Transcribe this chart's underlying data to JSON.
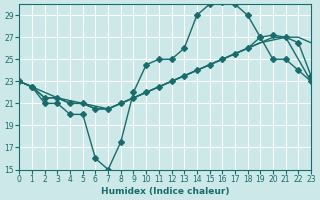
{
  "xlabel": "Humidex (Indice chaleur)",
  "ylabel": "",
  "xlim": [
    0,
    23
  ],
  "ylim": [
    15,
    30
  ],
  "xticks": [
    0,
    1,
    2,
    3,
    4,
    5,
    6,
    7,
    8,
    9,
    10,
    11,
    12,
    13,
    14,
    15,
    16,
    17,
    18,
    19,
    20,
    21,
    22,
    23
  ],
  "yticks": [
    15,
    17,
    19,
    21,
    23,
    25,
    27,
    29
  ],
  "bg_color": "#cce8e8",
  "line_color": "#1a6b6b",
  "grid_color": "#ffffff",
  "line1_x": [
    0,
    1,
    2,
    3,
    4,
    5,
    6,
    7,
    8,
    9,
    10,
    11,
    12,
    13,
    14,
    15,
    16,
    17,
    18,
    19,
    20,
    21,
    22,
    23
  ],
  "line1_y": [
    23,
    22.5,
    21,
    21,
    20,
    20,
    16,
    15,
    17.5,
    22,
    24.5,
    25,
    25,
    26,
    29,
    30,
    30.2,
    30,
    29,
    27,
    25,
    25,
    24,
    23
  ],
  "line2_x": [
    0,
    1,
    2,
    3,
    4,
    5,
    6,
    7,
    8,
    9,
    10,
    11,
    12,
    13,
    14,
    15,
    16,
    17,
    18,
    19,
    20,
    21,
    22,
    23
  ],
  "line2_y": [
    23,
    22.5,
    21.5,
    21.5,
    21,
    21,
    20.5,
    20.5,
    21,
    21.5,
    22,
    22.5,
    23,
    23.5,
    24,
    24.5,
    25,
    25.5,
    26,
    26.5,
    27,
    27,
    27,
    26.5
  ],
  "line3_x": [
    0,
    1,
    2,
    3,
    4,
    5,
    6,
    7,
    8,
    9,
    10,
    11,
    12,
    13,
    14,
    15,
    16,
    17,
    18,
    19,
    20,
    21,
    22,
    23
  ],
  "line3_y": [
    23,
    22.5,
    21.5,
    21.5,
    21,
    21,
    20.5,
    20.5,
    21,
    21.5,
    22,
    22.5,
    23,
    23.5,
    24,
    24.5,
    25,
    25.5,
    26,
    27,
    27.2,
    27,
    26.5,
    23.5
  ],
  "line4_x": [
    0,
    1,
    3,
    5,
    7,
    9,
    11,
    13,
    15,
    17,
    19,
    21,
    23
  ],
  "line4_y": [
    23,
    22.5,
    21.5,
    21,
    20.5,
    21.5,
    22.5,
    23.5,
    24.5,
    25.5,
    26.5,
    27,
    23
  ]
}
